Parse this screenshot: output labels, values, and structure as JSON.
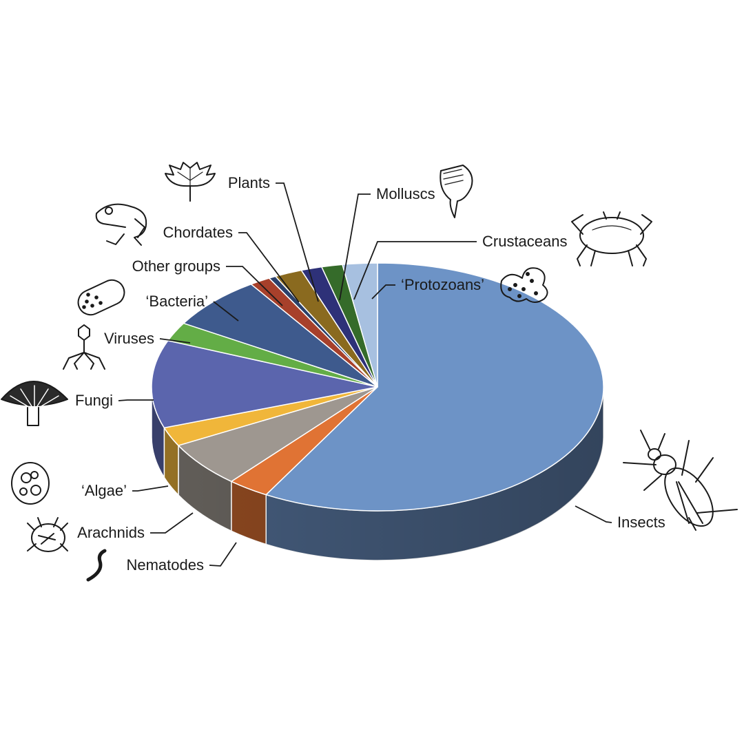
{
  "chart_data": {
    "type": "pie",
    "style": "3d",
    "title": "",
    "legend": "none (slices labelled by leader lines with illustrations)",
    "series": [
      {
        "categories": [
          "Insects",
          "Nematodes",
          "Arachnids",
          "'Algae'",
          "Fungi",
          "Viruses",
          "'Bacteria'",
          "Other groups",
          "Chordates",
          "Plants",
          "Molluscs",
          "Crustaceans",
          "'Protozoans'"
        ],
        "labels": [
          "Insects",
          "Nematodes",
          "Arachnids",
          "‘Algae’",
          "Fungi",
          "Viruses",
          "‘Bacteria’",
          "Other groups",
          "Chordates",
          "Plants",
          "Molluscs",
          "Crustaceans",
          "‘Protozoans’"
        ],
        "values": [
          58.5,
          3.0,
          6.0,
          2.5,
          11.5,
          2.5,
          7.0,
          1.5,
          0.5,
          2.0,
          1.5,
          1.5,
          2.5
        ],
        "colors": [
          "#6d93c6",
          "#e07334",
          "#9e9790",
          "#f0b63a",
          "#5b65ad",
          "#63ad46",
          "#3e5a8d",
          "#a7402b",
          "#2b416b",
          "#8a6a1f",
          "#2e3178",
          "#356b2a",
          "#a7c0e0"
        ]
      }
    ],
    "illustrations": [
      "beetle-icon",
      "worm-icon",
      "mite-icon",
      "alga-icon",
      "mushroom-icon",
      "virus-icon",
      "bacterium-icon",
      "frog-icon",
      "leaf-icon",
      "shell-icon",
      "crab-icon",
      "amoeba-icon"
    ]
  }
}
